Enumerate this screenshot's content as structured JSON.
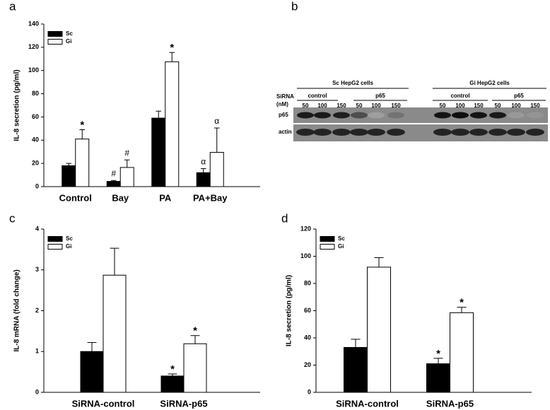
{
  "chart_data": [
    {
      "type": "bar",
      "panel": "a",
      "ylabel": "IL-8 secretion (pg/ml)",
      "categories": [
        "Control",
        "Bay",
        "PA",
        "PA+Bay"
      ],
      "series": [
        {
          "name": "Sc",
          "color": "#000000",
          "values": [
            18,
            4.5,
            59,
            12
          ],
          "errors": [
            2,
            0.8,
            6,
            3.5
          ],
          "labels": [
            null,
            "#",
            null,
            "α"
          ]
        },
        {
          "name": "Gi",
          "color": "#ffffff",
          "values": [
            41,
            16.5,
            107.5,
            29.5
          ],
          "errors": [
            8,
            6.5,
            8,
            21
          ],
          "labels": [
            "*",
            "#",
            "*",
            "α"
          ]
        }
      ],
      "ylim": [
        0,
        140
      ],
      "yticks": [
        0,
        20,
        40,
        60,
        80,
        100,
        120,
        140
      ],
      "legend": "upper left"
    },
    {
      "type": "bar",
      "panel": "c",
      "ylabel": "IL-8 mRNA (fold change)",
      "categories": [
        "SiRNA-control",
        "SiRNA-p65"
      ],
      "series": [
        {
          "name": "Sc",
          "color": "#000000",
          "values": [
            1.0,
            0.4
          ],
          "errors": [
            0.22,
            0.05
          ],
          "labels": [
            null,
            "*"
          ]
        },
        {
          "name": "Gi",
          "color": "#ffffff",
          "values": [
            2.87,
            1.19
          ],
          "errors": [
            0.66,
            0.2
          ],
          "labels": [
            null,
            "*"
          ]
        }
      ],
      "ylim": [
        0,
        4
      ],
      "yticks": [
        0,
        1,
        2,
        3,
        4
      ],
      "legend": "upper left"
    },
    {
      "type": "bar",
      "panel": "d",
      "ylabel": "IL-8 secretion (pg/ml)",
      "categories": [
        "SiRNA-control",
        "SiRNA-p65"
      ],
      "series": [
        {
          "name": "Sc",
          "color": "#000000",
          "values": [
            33,
            21
          ],
          "errors": [
            6,
            4
          ],
          "labels": [
            null,
            "*"
          ]
        },
        {
          "name": "Gi",
          "color": "#ffffff",
          "values": [
            92,
            58.5
          ],
          "errors": [
            7,
            4
          ],
          "labels": [
            null,
            "*"
          ]
        }
      ],
      "ylim": [
        0,
        120
      ],
      "yticks": [
        0,
        20,
        40,
        60,
        80,
        100,
        120
      ],
      "legend": "upper left"
    }
  ],
  "blot": {
    "panel": "b",
    "groups": [
      {
        "title": "Sc HepG2 cells",
        "subgroups": [
          {
            "name": "control",
            "doses": [
              "50",
              "100",
              "150"
            ]
          },
          {
            "name": "p65",
            "doses": [
              "50",
              "100",
              "150"
            ]
          }
        ]
      },
      {
        "title": "Gi HepG2 cells",
        "subgroups": [
          {
            "name": "control",
            "doses": [
              "50",
              "100",
              "150"
            ]
          },
          {
            "name": "p65",
            "doses": [
              "50",
              "100",
              "150"
            ]
          }
        ]
      }
    ],
    "row_header": [
      "SiRNA",
      "(nM)"
    ],
    "rows": [
      "p65",
      "actin"
    ]
  }
}
